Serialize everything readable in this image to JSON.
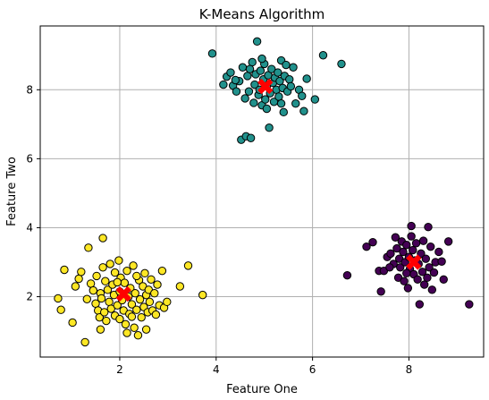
{
  "chart_data": {
    "type": "scatter",
    "title": "K-Means Algorithm",
    "xlabel": "Feature One",
    "ylabel": "Feature Two",
    "xlim": [
      0.35,
      9.55
    ],
    "ylim": [
      0.25,
      9.85
    ],
    "xticks": [
      2,
      4,
      6,
      8
    ],
    "yticks": [
      2,
      4,
      6,
      8
    ],
    "grid": true,
    "colors": {
      "cluster_yellow": "#fde725",
      "cluster_teal": "#21918c",
      "cluster_purple": "#440154",
      "centroid": "#ff0000",
      "edge": "#000000"
    },
    "series": [
      {
        "color": "#fde725",
        "points": [
          [
            0.72,
            1.95
          ],
          [
            0.78,
            1.62
          ],
          [
            0.85,
            2.78
          ],
          [
            1.02,
            1.25
          ],
          [
            1.08,
            2.3
          ],
          [
            1.15,
            2.52
          ],
          [
            1.28,
            0.68
          ],
          [
            1.32,
            1.93
          ],
          [
            1.35,
            3.42
          ],
          [
            1.4,
            2.38
          ],
          [
            1.45,
            2.18
          ],
          [
            1.5,
            1.8
          ],
          [
            1.52,
            2.6
          ],
          [
            1.55,
            1.6
          ],
          [
            1.58,
            1.4
          ],
          [
            1.6,
            2.1
          ],
          [
            1.62,
            1.95
          ],
          [
            1.65,
            2.85
          ],
          [
            1.65,
            3.7
          ],
          [
            1.68,
            1.55
          ],
          [
            1.7,
            2.45
          ],
          [
            1.72,
            1.3
          ],
          [
            1.75,
            2.2
          ],
          [
            1.78,
            1.85
          ],
          [
            1.8,
            2.95
          ],
          [
            1.82,
            1.65
          ],
          [
            1.85,
            2.35
          ],
          [
            1.88,
            2.05
          ],
          [
            1.9,
            1.45
          ],
          [
            1.9,
            2.7
          ],
          [
            1.95,
            1.75
          ],
          [
            1.98,
            3.05
          ],
          [
            2.0,
            2.15
          ],
          [
            2.0,
            1.35
          ],
          [
            2.02,
            2.55
          ],
          [
            2.05,
            1.9
          ],
          [
            2.08,
            1.6
          ],
          [
            2.1,
            2.4
          ],
          [
            2.12,
            1.2
          ],
          [
            2.15,
            2.75
          ],
          [
            2.18,
            2.0
          ],
          [
            2.2,
            1.5
          ],
          [
            2.22,
            2.25
          ],
          [
            2.25,
            1.78
          ],
          [
            2.28,
            2.9
          ],
          [
            2.3,
            1.1
          ],
          [
            2.32,
            2.1
          ],
          [
            2.35,
            1.62
          ],
          [
            2.38,
            0.88
          ],
          [
            2.4,
            2.48
          ],
          [
            2.42,
            1.92
          ],
          [
            2.45,
            1.4
          ],
          [
            2.48,
            2.3
          ],
          [
            2.5,
            1.7
          ],
          [
            2.52,
            2.68
          ],
          [
            2.55,
            2.05
          ],
          [
            2.58,
            1.55
          ],
          [
            2.6,
            2.2
          ],
          [
            2.62,
            1.85
          ],
          [
            2.65,
            2.5
          ],
          [
            2.68,
            1.6
          ],
          [
            2.72,
            2.1
          ],
          [
            2.75,
            1.48
          ],
          [
            2.78,
            2.35
          ],
          [
            2.82,
            1.75
          ],
          [
            2.88,
            2.75
          ],
          [
            2.92,
            1.68
          ],
          [
            2.98,
            1.85
          ],
          [
            3.25,
            2.3
          ],
          [
            3.42,
            2.9
          ],
          [
            3.72,
            2.05
          ],
          [
            1.2,
            2.72
          ],
          [
            2.55,
            1.05
          ],
          [
            2.15,
            0.95
          ],
          [
            1.6,
            1.05
          ],
          [
            2.35,
            2.6
          ],
          [
            1.95,
            2.42
          ],
          [
            2.25,
            1.42
          ]
        ]
      },
      {
        "color": "#21918c",
        "points": [
          [
            3.92,
            9.05
          ],
          [
            4.15,
            8.15
          ],
          [
            4.22,
            8.38
          ],
          [
            4.3,
            8.5
          ],
          [
            4.35,
            8.12
          ],
          [
            4.42,
            7.95
          ],
          [
            4.48,
            8.25
          ],
          [
            4.52,
            6.55
          ],
          [
            4.55,
            8.65
          ],
          [
            4.6,
            7.75
          ],
          [
            4.62,
            6.65
          ],
          [
            4.65,
            8.4
          ],
          [
            4.68,
            7.95
          ],
          [
            4.72,
            6.6
          ],
          [
            4.75,
            8.8
          ],
          [
            4.78,
            7.62
          ],
          [
            4.8,
            8.15
          ],
          [
            4.82,
            8.45
          ],
          [
            4.85,
            9.4
          ],
          [
            4.88,
            7.85
          ],
          [
            4.9,
            8.0
          ],
          [
            4.92,
            8.55
          ],
          [
            4.95,
            7.55
          ],
          [
            4.98,
            8.3
          ],
          [
            5.0,
            8.75
          ],
          [
            5.02,
            7.72
          ],
          [
            5.05,
            8.1
          ],
          [
            5.08,
            8.42
          ],
          [
            5.1,
            6.9
          ],
          [
            5.12,
            7.9
          ],
          [
            5.15,
            8.6
          ],
          [
            5.18,
            8.2
          ],
          [
            5.2,
            7.65
          ],
          [
            5.22,
            8.35
          ],
          [
            5.25,
            8.0
          ],
          [
            5.28,
            8.5
          ],
          [
            5.3,
            7.8
          ],
          [
            5.32,
            8.25
          ],
          [
            5.35,
            8.85
          ],
          [
            5.38,
            8.05
          ],
          [
            5.4,
            7.35
          ],
          [
            5.42,
            8.4
          ],
          [
            5.45,
            8.72
          ],
          [
            5.48,
            7.95
          ],
          [
            5.52,
            8.3
          ],
          [
            5.55,
            8.1
          ],
          [
            5.6,
            8.65
          ],
          [
            5.65,
            7.6
          ],
          [
            5.72,
            8.0
          ],
          [
            5.78,
            7.82
          ],
          [
            5.82,
            7.38
          ],
          [
            5.88,
            8.32
          ],
          [
            6.05,
            7.72
          ],
          [
            6.22,
            9.0
          ],
          [
            6.6,
            8.75
          ],
          [
            4.4,
            8.28
          ],
          [
            5.05,
            7.45
          ],
          [
            4.7,
            8.6
          ],
          [
            5.35,
            7.6
          ],
          [
            4.95,
            8.9
          ]
        ]
      },
      {
        "color": "#440154",
        "points": [
          [
            6.72,
            2.62
          ],
          [
            7.12,
            3.45
          ],
          [
            7.25,
            3.58
          ],
          [
            7.38,
            2.75
          ],
          [
            7.42,
            2.15
          ],
          [
            7.48,
            2.75
          ],
          [
            7.55,
            3.15
          ],
          [
            7.62,
            3.25
          ],
          [
            7.68,
            2.95
          ],
          [
            7.72,
            3.72
          ],
          [
            7.75,
            3.4
          ],
          [
            7.78,
            2.55
          ],
          [
            7.8,
            3.1
          ],
          [
            7.82,
            2.85
          ],
          [
            7.85,
            3.6
          ],
          [
            7.88,
            3.3
          ],
          [
            7.9,
            2.45
          ],
          [
            7.92,
            3.0
          ],
          [
            7.95,
            3.5
          ],
          [
            7.98,
            2.25
          ],
          [
            8.0,
            3.15
          ],
          [
            8.02,
            2.8
          ],
          [
            8.05,
            4.05
          ],
          [
            8.05,
            3.75
          ],
          [
            8.08,
            3.35
          ],
          [
            8.1,
            2.65
          ],
          [
            8.12,
            3.05
          ],
          [
            8.15,
            3.55
          ],
          [
            8.18,
            2.5
          ],
          [
            8.2,
            2.95
          ],
          [
            8.22,
            1.78
          ],
          [
            8.25,
            3.25
          ],
          [
            8.28,
            2.72
          ],
          [
            8.3,
            3.62
          ],
          [
            8.32,
            2.35
          ],
          [
            8.35,
            3.1
          ],
          [
            8.38,
            2.55
          ],
          [
            8.42,
            2.85
          ],
          [
            8.45,
            3.45
          ],
          [
            8.48,
            2.2
          ],
          [
            8.52,
            2.7
          ],
          [
            8.55,
            3.0
          ],
          [
            8.62,
            3.3
          ],
          [
            8.72,
            2.5
          ],
          [
            8.82,
            3.6
          ],
          [
            9.25,
            1.78
          ],
          [
            8.68,
            3.02
          ],
          [
            7.6,
            2.85
          ],
          [
            8.4,
            4.02
          ],
          [
            7.95,
            2.68
          ]
        ]
      }
    ],
    "centroids": [
      [
        2.08,
        2.08
      ],
      [
        5.02,
        8.1
      ],
      [
        8.1,
        3.0
      ]
    ]
  }
}
